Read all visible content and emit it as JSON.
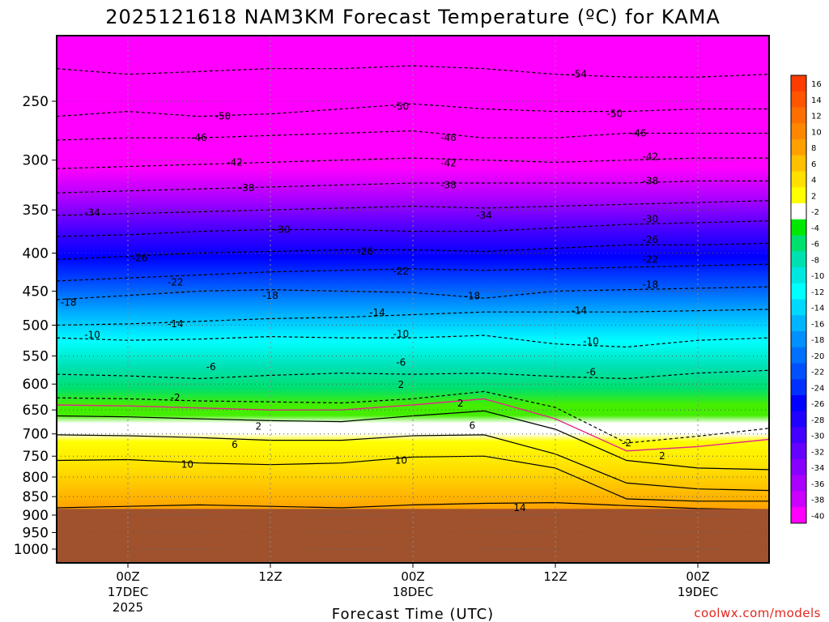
{
  "title": "2025121618 NAM3KM Forecast Temperature (ºC) for KAMA",
  "xlabel": "Forecast Time (UTC)",
  "credit": "coolwx.com/models",
  "chart_data": {
    "type": "heatmap",
    "y_axis": {
      "ticks": [
        "250",
        "300",
        "350",
        "400",
        "450",
        "500",
        "550",
        "600",
        "650",
        "700",
        "750",
        "800",
        "850",
        "900",
        "950",
        "1000"
      ],
      "pressure_range": [
        200,
        1050
      ]
    },
    "x_axis": {
      "ticks": [
        {
          "label": "00Z",
          "sub": "17DEC",
          "sub2": "2025"
        },
        {
          "label": "12Z",
          "sub": "",
          "sub2": ""
        },
        {
          "label": "00Z",
          "sub": "18DEC",
          "sub2": ""
        },
        {
          "label": "12Z",
          "sub": "",
          "sub2": ""
        },
        {
          "label": "00Z",
          "sub": "19DEC",
          "sub2": ""
        }
      ],
      "forecast_hours": [
        6,
        18,
        30,
        42,
        54
      ],
      "hour_range": [
        0,
        60
      ]
    },
    "colorbar": {
      "levels": [
        "16",
        "14",
        "12",
        "10",
        "8",
        "6",
        "4",
        "2",
        "-2",
        "-4",
        "-6",
        "-8",
        "-10",
        "-12",
        "-14",
        "-16",
        "-18",
        "-20",
        "-22",
        "-24",
        "-26",
        "-28",
        "-30",
        "-32",
        "-34",
        "-36",
        "-38",
        "-40"
      ],
      "colors": [
        "#ff3c00",
        "#ff5500",
        "#ff6e00",
        "#ff8700",
        "#ffa000",
        "#ffc000",
        "#ffe000",
        "#ffff00",
        "#ffffff",
        "#00e800",
        "#00e06e",
        "#00e0b0",
        "#00e8e0",
        "#00ffff",
        "#00d8ff",
        "#00b4ff",
        "#0090ff",
        "#0070ff",
        "#0050ff",
        "#0030ff",
        "#0000ff",
        "#2000ff",
        "#4400ff",
        "#6600ff",
        "#8800ff",
        "#aa00ff",
        "#cc00ff",
        "#ff00ff"
      ]
    },
    "ground_color": "#a0522d",
    "surface_pressure": 883,
    "isotherm_pressures": [
      {
        "temp": 14,
        "p": [
          880,
          876,
          872,
          876,
          880,
          872,
          868,
          866,
          874,
          882,
          885
        ]
      },
      {
        "temp": 10,
        "p": [
          760,
          758,
          766,
          770,
          766,
          752,
          750,
          778,
          856,
          862,
          862
        ]
      },
      {
        "temp": 6,
        "p": [
          702,
          704,
          708,
          714,
          714,
          704,
          702,
          745,
          815,
          830,
          834
        ]
      },
      {
        "temp": 2,
        "p": [
          662,
          664,
          668,
          672,
          674,
          662,
          652,
          690,
          760,
          778,
          782
        ]
      },
      {
        "temp": -2,
        "p": [
          626,
          628,
          632,
          634,
          636,
          628,
          614,
          645,
          720,
          705,
          688
        ]
      },
      {
        "temp": -6,
        "p": [
          582,
          585,
          590,
          584,
          580,
          582,
          580,
          586,
          590,
          580,
          575
        ]
      },
      {
        "temp": -10,
        "p": [
          520,
          524,
          522,
          518,
          520,
          520,
          516,
          530,
          535,
          524,
          520
        ]
      },
      {
        "temp": -14,
        "p": [
          500,
          498,
          494,
          490,
          488,
          484,
          480,
          480,
          480,
          478,
          476
        ]
      },
      {
        "temp": -18,
        "p": [
          462,
          456,
          450,
          448,
          450,
          452,
          460,
          450,
          448,
          446,
          444
        ]
      },
      {
        "temp": -22,
        "p": [
          436,
          432,
          428,
          424,
          422,
          420,
          422,
          420,
          418,
          416,
          414
        ]
      },
      {
        "temp": -26,
        "p": [
          408,
          404,
          400,
          398,
          396,
          396,
          398,
          394,
          390,
          390,
          388
        ]
      },
      {
        "temp": -30,
        "p": [
          380,
          378,
          374,
          372,
          372,
          374,
          374,
          370,
          366,
          364,
          362
        ]
      },
      {
        "temp": -34,
        "p": [
          356,
          354,
          352,
          350,
          348,
          346,
          348,
          346,
          344,
          342,
          340
        ]
      },
      {
        "temp": -38,
        "p": [
          332,
          330,
          328,
          326,
          324,
          322,
          322,
          322,
          322,
          320,
          320
        ]
      },
      {
        "temp": -42,
        "p": [
          308,
          306,
          304,
          302,
          300,
          298,
          300,
          302,
          300,
          298,
          298
        ]
      },
      {
        "temp": -46,
        "p": [
          282,
          280,
          280,
          278,
          276,
          274,
          280,
          280,
          276,
          276,
          276
        ]
      },
      {
        "temp": -50,
        "p": [
          262,
          258,
          262,
          260,
          256,
          252,
          256,
          258,
          258,
          256,
          256
        ]
      },
      {
        "temp": -54,
        "p": [
          226,
          230,
          228,
          226,
          226,
          224,
          226,
          230,
          232,
          232,
          230
        ]
      }
    ],
    "contour_labels": [
      {
        "text": "-54",
        "h": 44,
        "p": 230
      },
      {
        "text": "-50",
        "h": 14,
        "p": 262
      },
      {
        "text": "-50",
        "h": 29,
        "p": 254
      },
      {
        "text": "-50",
        "h": 47,
        "p": 260
      },
      {
        "text": "-46",
        "h": 12,
        "p": 280
      },
      {
        "text": "-46",
        "h": 33,
        "p": 280
      },
      {
        "text": "-46",
        "h": 49,
        "p": 276
      },
      {
        "text": "-42",
        "h": 15,
        "p": 302
      },
      {
        "text": "-42",
        "h": 33,
        "p": 303
      },
      {
        "text": "-42",
        "h": 50,
        "p": 297
      },
      {
        "text": "-38",
        "h": 16,
        "p": 327
      },
      {
        "text": "-38",
        "h": 33,
        "p": 324
      },
      {
        "text": "-38",
        "h": 50,
        "p": 320
      },
      {
        "text": "-34",
        "h": 3,
        "p": 353
      },
      {
        "text": "-34",
        "h": 36,
        "p": 356
      },
      {
        "text": "-30",
        "h": 19,
        "p": 372
      },
      {
        "text": "-30",
        "h": 50,
        "p": 360
      },
      {
        "text": "-26",
        "h": 7,
        "p": 406
      },
      {
        "text": "-26",
        "h": 26,
        "p": 398
      },
      {
        "text": "-26",
        "h": 50,
        "p": 384
      },
      {
        "text": "-22",
        "h": 10,
        "p": 438
      },
      {
        "text": "-22",
        "h": 29,
        "p": 423
      },
      {
        "text": "-22",
        "h": 50,
        "p": 408
      },
      {
        "text": "-18",
        "h": 1,
        "p": 466
      },
      {
        "text": "-18",
        "h": 18,
        "p": 456
      },
      {
        "text": "-18",
        "h": 35,
        "p": 457
      },
      {
        "text": "-18",
        "h": 50,
        "p": 441
      },
      {
        "text": "-14",
        "h": 10,
        "p": 498
      },
      {
        "text": "-14",
        "h": 27,
        "p": 481
      },
      {
        "text": "-14",
        "h": 44,
        "p": 478
      },
      {
        "text": "-10",
        "h": 3,
        "p": 515
      },
      {
        "text": "-10",
        "h": 29,
        "p": 514
      },
      {
        "text": "-10",
        "h": 45,
        "p": 526
      },
      {
        "text": "-6",
        "h": 13,
        "p": 569
      },
      {
        "text": "-6",
        "h": 29,
        "p": 561
      },
      {
        "text": "-6",
        "h": 45,
        "p": 578
      },
      {
        "text": "2",
        "h": 29,
        "p": 601
      },
      {
        "text": "-2",
        "h": 10,
        "p": 626
      },
      {
        "text": "2",
        "h": 34,
        "p": 637
      },
      {
        "text": "2",
        "h": 17,
        "p": 684
      },
      {
        "text": "6",
        "h": 35,
        "p": 682
      },
      {
        "text": "6",
        "h": 15,
        "p": 724
      },
      {
        "text": "-2",
        "h": 48,
        "p": 720
      },
      {
        "text": "2",
        "h": 51,
        "p": 750
      },
      {
        "text": "10",
        "h": 11,
        "p": 770
      },
      {
        "text": "10",
        "h": 29,
        "p": 760
      },
      {
        "text": "14",
        "h": 39,
        "p": 880
      }
    ]
  }
}
